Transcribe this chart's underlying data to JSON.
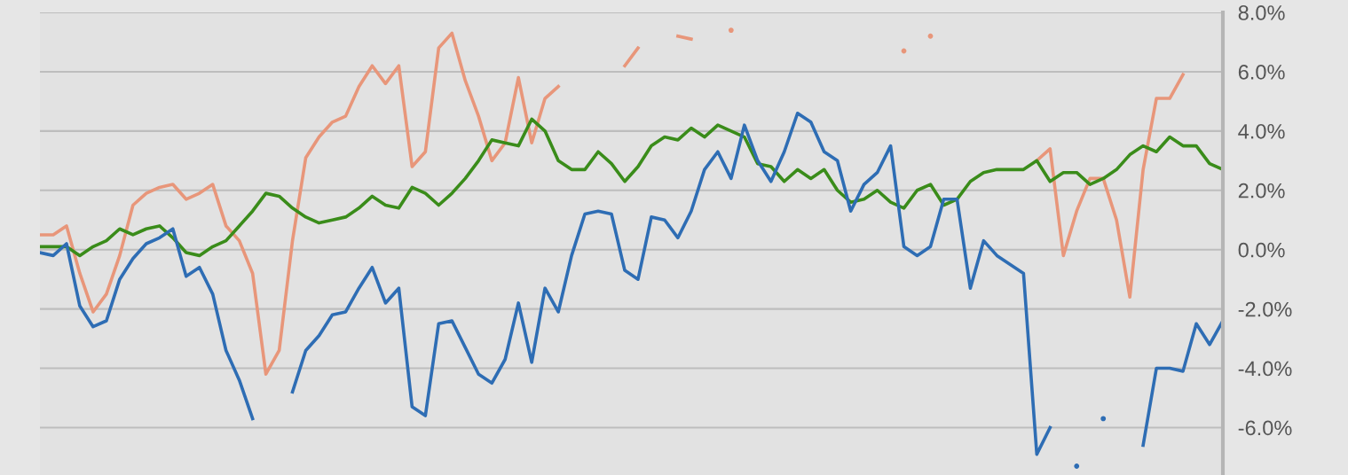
{
  "chart_data": {
    "type": "line",
    "categories": [
      null,
      null,
      null,
      null,
      null,
      null,
      null,
      null,
      null,
      null,
      null,
      null,
      null,
      null,
      null,
      null,
      null,
      null,
      null,
      null,
      null,
      null,
      null,
      null,
      null,
      null,
      null,
      null,
      null,
      null,
      null,
      null,
      null,
      null,
      null,
      null,
      null,
      null,
      null,
      null,
      null,
      null,
      null,
      null,
      null,
      null,
      null,
      null,
      null,
      null,
      null,
      null,
      null,
      null,
      null,
      null,
      null,
      null,
      null,
      null,
      null,
      null,
      null,
      null,
      null,
      null,
      null,
      null,
      null,
      null,
      null,
      null,
      null,
      null,
      null,
      null,
      null,
      null,
      null,
      null,
      null,
      null,
      null,
      null,
      null,
      null,
      null,
      null,
      null,
      null
    ],
    "series": [
      {
        "color": "#e8967a",
        "values": [
          0.5,
          0.5,
          0.8,
          -0.8,
          -2.1,
          -1.5,
          -0.2,
          1.5,
          1.9,
          2.1,
          2.2,
          1.7,
          1.9,
          2.2,
          0.8,
          0.3,
          -0.8,
          -4.2,
          -3.4,
          0.3,
          3.1,
          3.8,
          4.3,
          4.5,
          5.5,
          6.2,
          5.6,
          6.2,
          2.8,
          3.3,
          6.8,
          7.3,
          5.7,
          4.5,
          3.0,
          3.6,
          5.8,
          3.6,
          5.1,
          5.5,
          null,
          null,
          null,
          null,
          6.2,
          6.8,
          null,
          null,
          7.2,
          7.1,
          null,
          null,
          7.4,
          null,
          null,
          null,
          null,
          null,
          null,
          null,
          null,
          null,
          null,
          null,
          null,
          6.7,
          null,
          7.2,
          null,
          null,
          null,
          null,
          null,
          null,
          null,
          3.0,
          3.4,
          -0.2,
          1.3,
          2.4,
          2.4,
          1.0,
          -1.6,
          2.7,
          5.1,
          5.1,
          5.9,
          null,
          null,
          null
        ]
      },
      {
        "color": "#3a8c1a",
        "values": [
          0.1,
          0.1,
          0.1,
          -0.2,
          0.1,
          0.3,
          0.7,
          0.5,
          0.7,
          0.8,
          0.4,
          -0.1,
          -0.2,
          0.1,
          0.3,
          0.8,
          1.3,
          1.9,
          1.8,
          1.4,
          1.1,
          0.9,
          1.0,
          1.1,
          1.4,
          1.8,
          1.5,
          1.4,
          2.1,
          1.9,
          1.5,
          1.9,
          2.4,
          3.0,
          3.7,
          3.6,
          3.5,
          4.4,
          4.0,
          3.0,
          2.7,
          2.7,
          3.3,
          2.9,
          2.3,
          2.8,
          3.5,
          3.8,
          3.7,
          4.1,
          3.8,
          4.2,
          4.0,
          3.8,
          2.9,
          2.8,
          2.3,
          2.7,
          2.4,
          2.7,
          2.0,
          1.6,
          1.7,
          2.0,
          1.6,
          1.4,
          2.0,
          2.2,
          1.5,
          1.7,
          2.3,
          2.6,
          2.7,
          2.7,
          2.7,
          3.0,
          2.3,
          2.6,
          2.6,
          2.2,
          2.4,
          2.7,
          3.2,
          3.5,
          3.3,
          3.8,
          3.5,
          3.5,
          2.9,
          2.7
        ]
      },
      {
        "color": "#2e6db4",
        "values": [
          -0.1,
          -0.2,
          0.2,
          -1.9,
          -2.6,
          -2.4,
          -1.0,
          -0.3,
          0.2,
          0.4,
          0.7,
          -0.9,
          -0.6,
          -1.5,
          -3.4,
          -4.4,
          -5.7,
          null,
          null,
          -4.8,
          -3.4,
          -2.9,
          -2.2,
          -2.1,
          -1.3,
          -0.6,
          -1.8,
          -1.3,
          -5.3,
          -5.6,
          -2.5,
          -2.4,
          -3.3,
          -4.2,
          -4.5,
          -3.7,
          -1.8,
          -3.8,
          -1.3,
          -2.1,
          -0.2,
          1.2,
          1.3,
          1.2,
          -0.7,
          -1.0,
          1.1,
          1.0,
          0.4,
          1.3,
          2.7,
          3.3,
          2.4,
          4.2,
          3.0,
          2.3,
          3.3,
          4.6,
          4.3,
          3.3,
          3.0,
          1.3,
          2.2,
          2.6,
          3.5,
          0.1,
          -0.2,
          0.1,
          1.7,
          1.7,
          -1.3,
          0.3,
          -0.2,
          -0.5,
          -0.8,
          -6.9,
          -6.0,
          null,
          -7.3,
          null,
          -5.7,
          null,
          null,
          -6.6,
          -4.0,
          -4.0,
          -4.1,
          -2.5,
          -3.2,
          -2.4
        ]
      }
    ],
    "ylim": [
      -7.6,
      8.0
    ],
    "yticks": [
      {
        "value": -6,
        "label": "-6.0%"
      },
      {
        "value": -4,
        "label": "-4.0%"
      },
      {
        "value": -2,
        "label": "-2.0%"
      },
      {
        "value": 0,
        "label": "0.0%"
      },
      {
        "value": 2,
        "label": "2.0%"
      },
      {
        "value": 4,
        "label": "4.0%"
      },
      {
        "value": 6,
        "label": "6.0%"
      },
      {
        "value": 8,
        "label": "8.0%"
      }
    ],
    "grid": "y",
    "tick_labels": "y",
    "marker": "none",
    "line_style": "solid"
  }
}
